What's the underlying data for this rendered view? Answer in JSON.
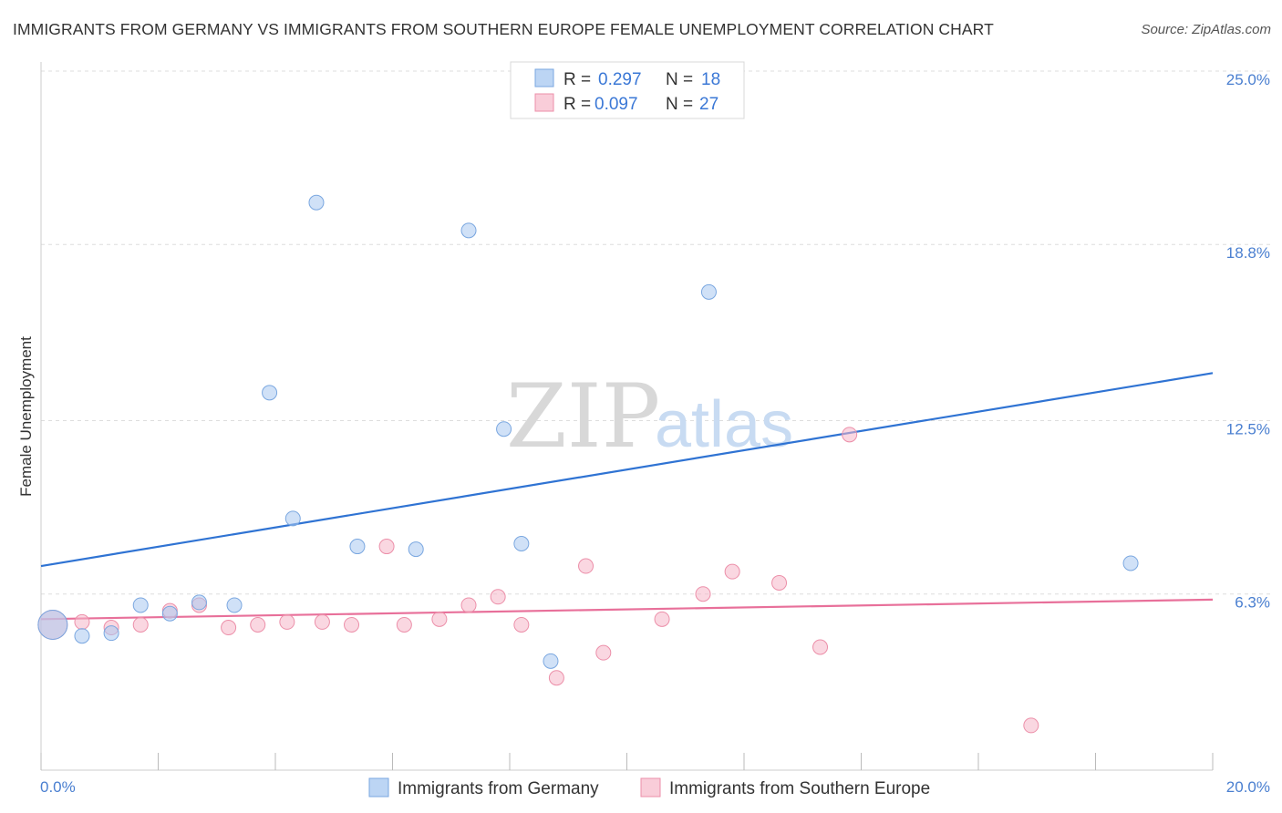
{
  "title": "IMMIGRANTS FROM GERMANY VS IMMIGRANTS FROM SOUTHERN EUROPE FEMALE UNEMPLOYMENT CORRELATION CHART",
  "source": "Source: ZipAtlas.com",
  "watermark": {
    "zip": "ZIP",
    "atlas": "atlas"
  },
  "chart_data": {
    "type": "scatter",
    "title": "IMMIGRANTS FROM GERMANY VS IMMIGRANTS FROM SOUTHERN EUROPE FEMALE UNEMPLOYMENT CORRELATION CHART",
    "xlabel": "",
    "ylabel": "Female Unemployment",
    "xlim": [
      0,
      20
    ],
    "ylim": [
      0,
      25
    ],
    "x_tick_labels": {
      "min": "0.0%",
      "max": "20.0%"
    },
    "y_ticks": [
      {
        "value": 6.3,
        "label": "6.3%"
      },
      {
        "value": 12.5,
        "label": "12.5%"
      },
      {
        "value": 18.8,
        "label": "18.8%"
      },
      {
        "value": 25.0,
        "label": "25.0%"
      }
    ],
    "legend": [
      {
        "r_label": "R =",
        "r_value": "0.297",
        "n_label": "N =",
        "n_value": "18",
        "color": "#a9c8f0"
      },
      {
        "r_label": "R =",
        "r_value": "0.097",
        "n_label": "N =",
        "n_value": "27",
        "color": "#f6b6c8"
      }
    ],
    "series": [
      {
        "name": "Immigrants from Germany",
        "color": "#a9c8f0",
        "stroke": "#7aa7e0",
        "trend_color": "#2f73d3",
        "trend": {
          "x0": 0,
          "y0": 7.3,
          "x1": 20,
          "y1": 14.2
        },
        "points": [
          {
            "x": 0.2,
            "y": 5.2,
            "big": true
          },
          {
            "x": 0.7,
            "y": 4.8
          },
          {
            "x": 1.2,
            "y": 4.9
          },
          {
            "x": 1.7,
            "y": 5.9
          },
          {
            "x": 2.2,
            "y": 5.6
          },
          {
            "x": 2.7,
            "y": 6.0
          },
          {
            "x": 3.3,
            "y": 5.9
          },
          {
            "x": 3.9,
            "y": 13.5
          },
          {
            "x": 4.3,
            "y": 9.0
          },
          {
            "x": 4.7,
            "y": 20.3
          },
          {
            "x": 5.4,
            "y": 8.0
          },
          {
            "x": 6.4,
            "y": 7.9
          },
          {
            "x": 7.3,
            "y": 19.3
          },
          {
            "x": 7.9,
            "y": 12.2
          },
          {
            "x": 8.2,
            "y": 8.1
          },
          {
            "x": 8.7,
            "y": 3.9
          },
          {
            "x": 11.4,
            "y": 17.1
          },
          {
            "x": 18.6,
            "y": 7.4
          }
        ]
      },
      {
        "name": "Immigrants from Southern Europe",
        "color": "#f6b6c8",
        "stroke": "#ec8fa9",
        "trend_color": "#e8709a",
        "trend": {
          "x0": 0,
          "y0": 5.4,
          "x1": 20,
          "y1": 6.1
        },
        "points": [
          {
            "x": 0.2,
            "y": 5.2,
            "big": true
          },
          {
            "x": 0.7,
            "y": 5.3
          },
          {
            "x": 1.2,
            "y": 5.1
          },
          {
            "x": 1.7,
            "y": 5.2
          },
          {
            "x": 2.2,
            "y": 5.7
          },
          {
            "x": 2.7,
            "y": 5.9
          },
          {
            "x": 3.2,
            "y": 5.1
          },
          {
            "x": 3.7,
            "y": 5.2
          },
          {
            "x": 4.2,
            "y": 5.3
          },
          {
            "x": 4.8,
            "y": 5.3
          },
          {
            "x": 5.3,
            "y": 5.2
          },
          {
            "x": 5.9,
            "y": 8.0
          },
          {
            "x": 6.2,
            "y": 5.2
          },
          {
            "x": 6.8,
            "y": 5.4
          },
          {
            "x": 7.3,
            "y": 5.9
          },
          {
            "x": 7.8,
            "y": 6.2
          },
          {
            "x": 8.2,
            "y": 5.2
          },
          {
            "x": 8.8,
            "y": 3.3
          },
          {
            "x": 9.3,
            "y": 7.3
          },
          {
            "x": 9.6,
            "y": 4.2
          },
          {
            "x": 10.6,
            "y": 5.4
          },
          {
            "x": 11.3,
            "y": 6.3
          },
          {
            "x": 11.8,
            "y": 7.1
          },
          {
            "x": 12.6,
            "y": 6.7
          },
          {
            "x": 13.3,
            "y": 4.4
          },
          {
            "x": 13.8,
            "y": 12.0
          },
          {
            "x": 16.9,
            "y": 1.6
          }
        ]
      }
    ]
  }
}
